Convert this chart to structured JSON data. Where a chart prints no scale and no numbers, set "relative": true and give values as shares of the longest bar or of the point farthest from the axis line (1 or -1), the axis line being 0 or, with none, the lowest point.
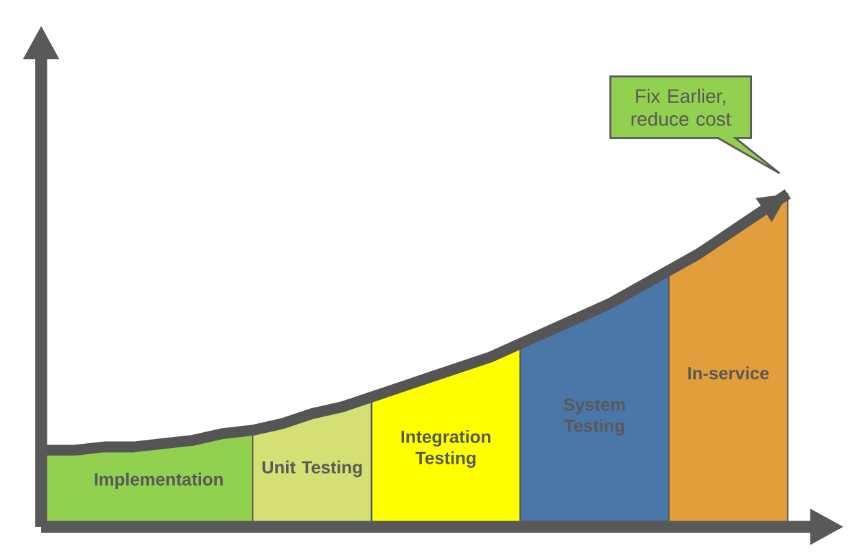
{
  "chart_data": {
    "type": "area",
    "relative": true,
    "categories": [
      null,
      null,
      null,
      null,
      null,
      null,
      null,
      null,
      null,
      null,
      null,
      null,
      null,
      null,
      null,
      null,
      null,
      null,
      null,
      null,
      null,
      null,
      null,
      null,
      null,
      null
    ],
    "series": [
      {
        "name": "Implementation",
        "color": "#92d050",
        "values": [
          0.23,
          0.23,
          0.24,
          0.24,
          0.25,
          0.26,
          0.28,
          0.29,
          null,
          null,
          null,
          null,
          null,
          null,
          null,
          null,
          null,
          null,
          null,
          null,
          null,
          null,
          null,
          null,
          null,
          null
        ]
      },
      {
        "name": "Unit Testing",
        "color": "#d4df74",
        "values": [
          null,
          null,
          null,
          null,
          null,
          null,
          null,
          0.29,
          0.31,
          0.34,
          0.36,
          0.39,
          null,
          null,
          null,
          null,
          null,
          null,
          null,
          null,
          null,
          null,
          null,
          null,
          null,
          null
        ]
      },
      {
        "name": "Integration Testing",
        "color": "#ffff00",
        "values": [
          null,
          null,
          null,
          null,
          null,
          null,
          null,
          null,
          null,
          null,
          null,
          0.39,
          0.42,
          0.45,
          0.48,
          0.51,
          0.55,
          null,
          null,
          null,
          null,
          null,
          null,
          null,
          null,
          null
        ]
      },
      {
        "name": "System Testing",
        "color": "#4a76a8",
        "values": [
          null,
          null,
          null,
          null,
          null,
          null,
          null,
          null,
          null,
          null,
          null,
          null,
          null,
          null,
          null,
          null,
          0.55,
          0.59,
          0.63,
          0.67,
          0.72,
          0.77,
          null,
          null,
          null,
          null
        ]
      },
      {
        "name": "In-service",
        "color": "#e39e3c",
        "values": [
          null,
          null,
          null,
          null,
          null,
          null,
          null,
          null,
          null,
          null,
          null,
          null,
          null,
          null,
          null,
          null,
          null,
          null,
          null,
          null,
          null,
          0.77,
          0.82,
          0.88,
          0.94,
          1.0
        ]
      },
      {
        "type": "line",
        "color": "#555555",
        "values": [
          0.23,
          0.23,
          0.24,
          0.24,
          0.25,
          0.26,
          0.28,
          0.29,
          0.31,
          0.34,
          0.36,
          0.39,
          0.42,
          0.45,
          0.48,
          0.51,
          0.55,
          0.59,
          0.63,
          0.67,
          0.72,
          0.77,
          0.82,
          0.88,
          0.94,
          1.0
        ]
      }
    ],
    "annotations": [
      "Fix Earlier, reduce cost"
    ]
  }
}
